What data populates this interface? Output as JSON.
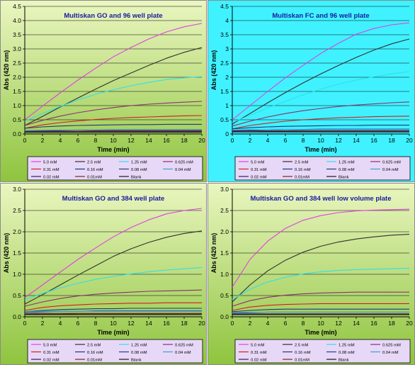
{
  "legend_labels": [
    "5.0 mM",
    "2.5 mM",
    "1.25 mM",
    "0.625 mM",
    "0.31 mM",
    "0.16 mM",
    "0.08 mM",
    "0.04 mM",
    "0.02 mM",
    "0.01mM",
    "Blank"
  ],
  "colors": {
    "series": [
      "#e040e0",
      "#303030",
      "#30e0e8",
      "#8a3070",
      "#d02020",
      "#1a3a7a",
      "#2a3a88",
      "#3aa0d0",
      "#3a1a5a",
      "#7a2a20",
      "#1a1a1a"
    ],
    "green_gradient_top": "#eaf6c0",
    "green_gradient_bottom": "#8ec43e",
    "cyan_bg": "#40f2ff",
    "lavender_bg": "#e8d8f8",
    "title_text": "#1a1aa0"
  },
  "chart_data": [
    {
      "type": "line",
      "title": "Multiskan GO  and 96 well plate",
      "xlabel": "Time (min)",
      "ylabel": "Abs (420 nm)",
      "xlim": [
        0,
        20
      ],
      "ylim": [
        0,
        4.5
      ],
      "x_ticks": [
        "0",
        "2",
        "4",
        "6",
        "8",
        "10",
        "12",
        "14",
        "16",
        "18",
        "20"
      ],
      "y_ticks": [
        "0.0",
        "0.5",
        "1.0",
        "1.5",
        "2.0",
        "2.5",
        "3.0",
        "3.5",
        "4.0",
        "4.5"
      ],
      "grid": true,
      "x": [
        0,
        2,
        4,
        6,
        8,
        10,
        12,
        14,
        16,
        18,
        20
      ],
      "series": [
        {
          "name": "5.0 mM",
          "values": [
            0.5,
            0.98,
            1.45,
            1.9,
            2.32,
            2.72,
            3.05,
            3.35,
            3.6,
            3.78,
            3.9
          ]
        },
        {
          "name": "2.5 mM",
          "values": [
            0.3,
            0.62,
            0.95,
            1.27,
            1.58,
            1.88,
            2.15,
            2.42,
            2.67,
            2.88,
            3.05
          ]
        },
        {
          "name": "1.25 mM",
          "values": [
            0.45,
            0.72,
            0.97,
            1.2,
            1.4,
            1.56,
            1.7,
            1.82,
            1.92,
            1.98,
            2.02
          ]
        },
        {
          "name": "0.625 mM",
          "values": [
            0.3,
            0.48,
            0.63,
            0.75,
            0.85,
            0.93,
            1.0,
            1.05,
            1.09,
            1.12,
            1.15
          ]
        },
        {
          "name": "0.31 mM",
          "values": [
            0.2,
            0.32,
            0.4,
            0.46,
            0.51,
            0.55,
            0.58,
            0.6,
            0.62,
            0.64,
            0.65
          ]
        },
        {
          "name": "0.16 mM",
          "values": [
            0.2,
            0.25,
            0.28,
            0.3,
            0.31,
            0.32,
            0.33,
            0.33,
            0.34,
            0.34,
            0.34
          ]
        },
        {
          "name": "0.08 mM",
          "values": [
            0.1,
            0.12,
            0.13,
            0.14,
            0.14,
            0.15,
            0.15,
            0.15,
            0.15,
            0.15,
            0.15
          ]
        },
        {
          "name": "0.04 mM",
          "values": [
            0.12,
            0.13,
            0.14,
            0.14,
            0.14,
            0.14,
            0.14,
            0.14,
            0.14,
            0.14,
            0.14
          ]
        },
        {
          "name": "0.02 mM",
          "values": [
            0.09,
            0.1,
            0.1,
            0.1,
            0.11,
            0.11,
            0.11,
            0.11,
            0.11,
            0.11,
            0.11
          ]
        },
        {
          "name": "0.01mM",
          "values": [
            0.08,
            0.08,
            0.08,
            0.09,
            0.09,
            0.09,
            0.09,
            0.09,
            0.09,
            0.09,
            0.09
          ]
        },
        {
          "name": "Blank",
          "values": [
            0.06,
            0.06,
            0.06,
            0.06,
            0.06,
            0.06,
            0.06,
            0.06,
            0.06,
            0.06,
            0.06
          ]
        }
      ]
    },
    {
      "type": "line",
      "title": "Multiskan FC  and 96 well plate",
      "xlabel": "Time (min)",
      "ylabel": "Abs (420 nm)",
      "xlim": [
        0,
        20
      ],
      "ylim": [
        0,
        4.5
      ],
      "x_ticks": [
        "0",
        "2",
        "4",
        "6",
        "8",
        "10",
        "12",
        "14",
        "16",
        "18",
        "20"
      ],
      "y_ticks": [
        "0",
        "0.5",
        "1",
        "1.5",
        "2",
        "2.5",
        "3",
        "3.5",
        "4",
        "4.5"
      ],
      "grid": true,
      "x": [
        0,
        2,
        4,
        6,
        8,
        10,
        12,
        14,
        16,
        18,
        20
      ],
      "series": [
        {
          "name": "5.0 mM",
          "values": [
            0.5,
            1.0,
            1.5,
            1.98,
            2.42,
            2.84,
            3.2,
            3.52,
            3.72,
            3.85,
            3.92
          ]
        },
        {
          "name": "2.5 mM",
          "values": [
            0.35,
            0.72,
            1.1,
            1.46,
            1.8,
            2.12,
            2.42,
            2.7,
            2.96,
            3.18,
            3.35
          ]
        },
        {
          "name": "1.25 mM",
          "values": [
            0.4,
            0.66,
            0.92,
            1.15,
            1.38,
            1.58,
            1.76,
            1.9,
            2.02,
            2.12,
            2.2
          ]
        },
        {
          "name": "0.625 mM",
          "values": [
            0.28,
            0.45,
            0.6,
            0.72,
            0.82,
            0.9,
            0.97,
            1.02,
            1.06,
            1.1,
            1.13
          ]
        },
        {
          "name": "0.31 mM",
          "values": [
            0.18,
            0.3,
            0.38,
            0.45,
            0.5,
            0.54,
            0.57,
            0.59,
            0.61,
            0.62,
            0.63
          ]
        },
        {
          "name": "0.16 mM",
          "values": [
            0.18,
            0.22,
            0.25,
            0.27,
            0.28,
            0.29,
            0.3,
            0.3,
            0.31,
            0.31,
            0.31
          ]
        },
        {
          "name": "0.08 mM",
          "values": [
            0.12,
            0.14,
            0.15,
            0.16,
            0.16,
            0.17,
            0.17,
            0.17,
            0.17,
            0.17,
            0.17
          ]
        },
        {
          "name": "0.04 mM",
          "values": [
            0.14,
            0.15,
            0.15,
            0.16,
            0.16,
            0.16,
            0.16,
            0.16,
            0.16,
            0.16,
            0.16
          ]
        },
        {
          "name": "0.02 mM",
          "values": [
            0.1,
            0.11,
            0.11,
            0.11,
            0.12,
            0.12,
            0.12,
            0.12,
            0.12,
            0.12,
            0.12
          ]
        },
        {
          "name": "0.01mM",
          "values": [
            0.08,
            0.08,
            0.09,
            0.09,
            0.09,
            0.09,
            0.09,
            0.09,
            0.09,
            0.09,
            0.09
          ]
        },
        {
          "name": "Blank",
          "values": [
            0.07,
            0.07,
            0.07,
            0.07,
            0.07,
            0.07,
            0.07,
            0.07,
            0.07,
            0.07,
            0.07
          ]
        }
      ]
    },
    {
      "type": "line",
      "title": "Multiskan GO  and 384 well plate",
      "xlabel": "Time (min)",
      "ylabel": "Abs (420 nm)",
      "xlim": [
        0,
        20
      ],
      "ylim": [
        0,
        3.0
      ],
      "x_ticks": [
        "0",
        "2",
        "4",
        "6",
        "8",
        "10",
        "12",
        "14",
        "16",
        "18",
        "20"
      ],
      "y_ticks": [
        "0.0",
        "0.5",
        "1.0",
        "1.5",
        "2.0",
        "2.5",
        "3.0"
      ],
      "grid": true,
      "x": [
        0,
        2,
        4,
        6,
        8,
        10,
        12,
        14,
        16,
        18,
        20
      ],
      "series": [
        {
          "name": "5.0 mM",
          "values": [
            0.45,
            0.75,
            1.05,
            1.35,
            1.62,
            1.88,
            2.1,
            2.28,
            2.42,
            2.5,
            2.55
          ]
        },
        {
          "name": "2.5 mM",
          "values": [
            0.3,
            0.52,
            0.75,
            0.98,
            1.2,
            1.42,
            1.6,
            1.75,
            1.87,
            1.96,
            2.02
          ]
        },
        {
          "name": "1.25 mM",
          "values": [
            0.4,
            0.55,
            0.68,
            0.79,
            0.88,
            0.95,
            1.01,
            1.06,
            1.1,
            1.13,
            1.16
          ]
        },
        {
          "name": "0.625 mM",
          "values": [
            0.25,
            0.35,
            0.43,
            0.49,
            0.53,
            0.56,
            0.58,
            0.6,
            0.61,
            0.62,
            0.63
          ]
        },
        {
          "name": "0.31 mM",
          "values": [
            0.15,
            0.22,
            0.26,
            0.28,
            0.3,
            0.31,
            0.32,
            0.32,
            0.33,
            0.33,
            0.33
          ]
        },
        {
          "name": "0.16 mM",
          "values": [
            0.12,
            0.15,
            0.17,
            0.18,
            0.19,
            0.19,
            0.2,
            0.2,
            0.2,
            0.2,
            0.2
          ]
        },
        {
          "name": "0.08 mM",
          "values": [
            0.1,
            0.12,
            0.13,
            0.13,
            0.14,
            0.14,
            0.14,
            0.14,
            0.14,
            0.14,
            0.14
          ]
        },
        {
          "name": "0.04 mM",
          "values": [
            0.12,
            0.13,
            0.13,
            0.13,
            0.13,
            0.13,
            0.13,
            0.13,
            0.13,
            0.13,
            0.13
          ]
        },
        {
          "name": "0.02 mM",
          "values": [
            0.07,
            0.08,
            0.08,
            0.08,
            0.08,
            0.08,
            0.08,
            0.08,
            0.08,
            0.08,
            0.08
          ]
        },
        {
          "name": "0.01mM",
          "values": [
            0.06,
            0.06,
            0.06,
            0.07,
            0.07,
            0.07,
            0.07,
            0.07,
            0.07,
            0.07,
            0.07
          ]
        },
        {
          "name": "Blank",
          "values": [
            0.05,
            0.05,
            0.05,
            0.05,
            0.05,
            0.05,
            0.05,
            0.05,
            0.05,
            0.05,
            0.05
          ]
        }
      ]
    },
    {
      "type": "line",
      "title": "Multiskan GO  and 384 well low volume plate",
      "xlabel": "Time (min)",
      "ylabel": "Abs (420 nm)",
      "xlim": [
        0,
        20
      ],
      "ylim": [
        0,
        3.0
      ],
      "x_ticks": [
        "0",
        "2",
        "4",
        "6",
        "8",
        "10",
        "12",
        "14",
        "16",
        "18",
        "20"
      ],
      "y_ticks": [
        "0.0",
        "0.5",
        "1.0",
        "1.5",
        "2.0",
        "2.5",
        "3.0"
      ],
      "grid": true,
      "x": [
        0,
        2,
        4,
        6,
        8,
        10,
        12,
        14,
        16,
        18,
        20
      ],
      "series": [
        {
          "name": "5.0 mM",
          "values": [
            0.7,
            1.35,
            1.78,
            2.08,
            2.27,
            2.38,
            2.45,
            2.49,
            2.51,
            2.52,
            2.53
          ]
        },
        {
          "name": "2.5 mM",
          "values": [
            0.35,
            0.75,
            1.08,
            1.33,
            1.52,
            1.66,
            1.76,
            1.83,
            1.88,
            1.92,
            1.94
          ]
        },
        {
          "name": "1.25 mM",
          "values": [
            0.4,
            0.65,
            0.82,
            0.93,
            1.01,
            1.06,
            1.09,
            1.11,
            1.12,
            1.13,
            1.14
          ]
        },
        {
          "name": "0.625 mM",
          "values": [
            0.25,
            0.38,
            0.46,
            0.51,
            0.54,
            0.56,
            0.57,
            0.58,
            0.58,
            0.58,
            0.58
          ]
        },
        {
          "name": "0.31 mM",
          "values": [
            0.15,
            0.23,
            0.27,
            0.29,
            0.3,
            0.31,
            0.31,
            0.31,
            0.31,
            0.31,
            0.31
          ]
        },
        {
          "name": "0.16 mM",
          "values": [
            0.12,
            0.15,
            0.17,
            0.18,
            0.18,
            0.18,
            0.18,
            0.18,
            0.18,
            0.18,
            0.18
          ]
        },
        {
          "name": "0.08 mM",
          "values": [
            0.08,
            0.1,
            0.11,
            0.11,
            0.11,
            0.11,
            0.11,
            0.11,
            0.11,
            0.11,
            0.11
          ]
        },
        {
          "name": "0.04 mM",
          "values": [
            0.1,
            0.11,
            0.11,
            0.11,
            0.11,
            0.11,
            0.11,
            0.11,
            0.11,
            0.11,
            0.11
          ]
        },
        {
          "name": "0.02 mM",
          "values": [
            0.06,
            0.07,
            0.07,
            0.07,
            0.07,
            0.07,
            0.07,
            0.07,
            0.07,
            0.07,
            0.07
          ]
        },
        {
          "name": "0.01mM",
          "values": [
            0.05,
            0.05,
            0.06,
            0.06,
            0.06,
            0.06,
            0.06,
            0.06,
            0.06,
            0.06,
            0.06
          ]
        },
        {
          "name": "Blank",
          "values": [
            0.05,
            0.05,
            0.05,
            0.05,
            0.05,
            0.05,
            0.05,
            0.05,
            0.05,
            0.05,
            0.05
          ]
        }
      ]
    }
  ]
}
